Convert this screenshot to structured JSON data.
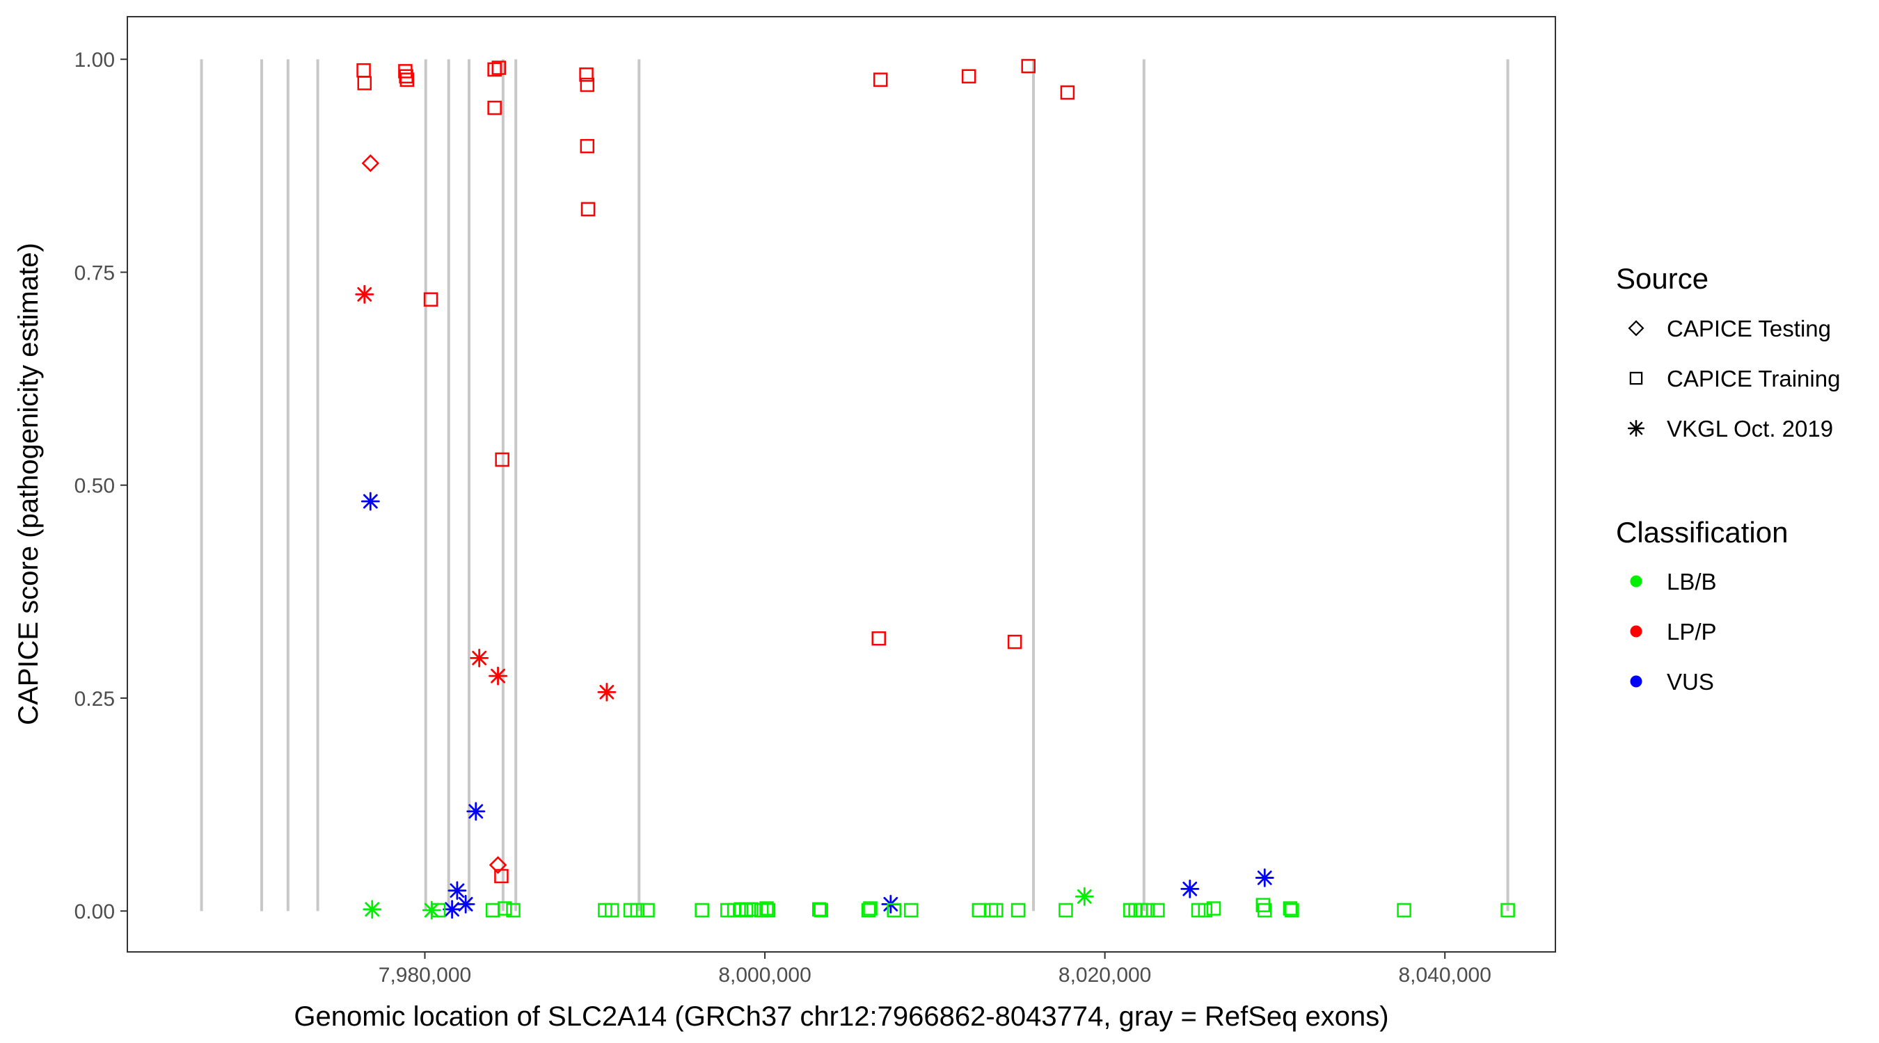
{
  "chart_data": {
    "type": "scatter",
    "xlabel": "Genomic location of SLC2A14 (GRCh37 chr12:7966862-8043774, gray = RefSeq exons)",
    "ylabel": "CAPICE score (pathogenicity estimate)",
    "xlim": [
      7962500,
      8046500
    ],
    "ylim": [
      -0.048,
      1.05
    ],
    "x_ticks": [
      {
        "value": 7980000,
        "label": "7,980,000"
      },
      {
        "value": 8000000,
        "label": "8,000,000"
      },
      {
        "value": 8020000,
        "label": "8,020,000"
      },
      {
        "value": 8040000,
        "label": "8,040,000"
      }
    ],
    "y_ticks": [
      {
        "value": 0,
        "label": "0.00"
      },
      {
        "value": 0.25,
        "label": "0.25"
      },
      {
        "value": 0.5,
        "label": "0.50"
      },
      {
        "value": 0.75,
        "label": "0.75"
      },
      {
        "value": 1,
        "label": "1.00"
      }
    ],
    "grid": false,
    "legend_placement": "right",
    "exons": [
      7966862,
      7970400,
      7971950,
      7973700,
      7980050,
      7981400,
      7982600,
      7984600,
      7985350,
      7992600,
      8015800,
      8022300,
      8043700
    ],
    "legends": [
      {
        "title": "Source",
        "kind": "shape",
        "entries": [
          {
            "label": "CAPICE Testing",
            "shape": "diamond"
          },
          {
            "label": "CAPICE Training",
            "shape": "square"
          },
          {
            "label": "VKGL Oct. 2019",
            "shape": "asterisk"
          }
        ]
      },
      {
        "title": "Classification",
        "kind": "color",
        "entries": [
          {
            "label": "LB/B",
            "color": "#00ee00"
          },
          {
            "label": "LP/P",
            "color": "#ff0000"
          },
          {
            "label": "VUS",
            "color": "#0000ff"
          }
        ]
      }
    ],
    "colors": {
      "LB/B": "#00ee00",
      "LP/P": "#ff0000",
      "VUS": "#0000ff",
      "exon": "#c8c8c8"
    },
    "series": [
      {
        "source": "CAPICE Training",
        "classification": "LP/P",
        "points": [
          [
            7976400,
            0.987
          ],
          [
            7976450,
            0.972
          ],
          [
            7978850,
            0.986
          ],
          [
            7978900,
            0.98
          ],
          [
            7978950,
            0.976
          ],
          [
            7984100,
            0.988
          ],
          [
            7984350,
            0.99
          ],
          [
            7984100,
            0.943
          ],
          [
            7989500,
            0.982
          ],
          [
            7989550,
            0.97
          ],
          [
            7989550,
            0.898
          ],
          [
            7989600,
            0.824
          ],
          [
            7980350,
            0.718
          ],
          [
            7984550,
            0.53
          ],
          [
            7984500,
            0.041
          ],
          [
            8006800,
            0.976
          ],
          [
            8012000,
            0.98
          ],
          [
            8015500,
            0.992
          ],
          [
            8017800,
            0.961
          ],
          [
            8006700,
            0.32
          ],
          [
            8014700,
            0.316
          ]
        ]
      },
      {
        "source": "CAPICE Testing",
        "classification": "LP/P",
        "points": [
          [
            7976800,
            0.878
          ],
          [
            7984300,
            0.054
          ]
        ]
      },
      {
        "source": "VKGL Oct. 2019",
        "classification": "LP/P",
        "points": [
          [
            7976450,
            0.724
          ],
          [
            7983200,
            0.297
          ],
          [
            7984300,
            0.276
          ],
          [
            7990700,
            0.257
          ]
        ]
      },
      {
        "source": "VKGL Oct. 2019",
        "classification": "VUS",
        "points": [
          [
            7976800,
            0.481
          ],
          [
            7983000,
            0.117
          ],
          [
            7981900,
            0.024
          ],
          [
            7982400,
            0.008
          ],
          [
            7981600,
            0.002
          ],
          [
            8007400,
            0.008
          ],
          [
            8025000,
            0.026
          ],
          [
            8029400,
            0.039
          ]
        ]
      },
      {
        "source": "VKGL Oct. 2019",
        "classification": "LB/B",
        "points": [
          [
            7976900,
            0.002
          ],
          [
            7980400,
            0.001
          ],
          [
            8018800,
            0.017
          ]
        ]
      },
      {
        "source": "CAPICE Training",
        "classification": "LB/B",
        "points": [
          [
            7980800,
            0.001
          ],
          [
            7984000,
            0.001
          ],
          [
            7984700,
            0.003
          ],
          [
            7985200,
            0.001
          ],
          [
            7990600,
            0.001
          ],
          [
            7991000,
            0.001
          ],
          [
            7992100,
            0.001
          ],
          [
            7992500,
            0.001
          ],
          [
            7993100,
            0.001
          ],
          [
            7996300,
            0.001
          ],
          [
            7997800,
            0.001
          ],
          [
            7998200,
            0.001
          ],
          [
            7998600,
            0.002
          ],
          [
            7998900,
            0.001
          ],
          [
            7999200,
            0.002
          ],
          [
            7999800,
            0.001
          ],
          [
            8000100,
            0.003
          ],
          [
            8000200,
            0.001
          ],
          [
            8003200,
            0.002
          ],
          [
            8003300,
            0.001
          ],
          [
            8006100,
            0.001
          ],
          [
            8006200,
            0.003
          ],
          [
            8007600,
            0.001
          ],
          [
            8008600,
            0.001
          ],
          [
            8012600,
            0.001
          ],
          [
            8013300,
            0.001
          ],
          [
            8013600,
            0.001
          ],
          [
            8014900,
            0.001
          ],
          [
            8017700,
            0.001
          ],
          [
            8021500,
            0.001
          ],
          [
            8021800,
            0.001
          ],
          [
            8022100,
            0.001
          ],
          [
            8022500,
            0.001
          ],
          [
            8023100,
            0.001
          ],
          [
            8025500,
            0.001
          ],
          [
            8025900,
            0.001
          ],
          [
            8026400,
            0.003
          ],
          [
            8029300,
            0.007
          ],
          [
            8029400,
            0.001
          ],
          [
            8030900,
            0.003
          ],
          [
            8031000,
            0.001
          ],
          [
            8037600,
            0.001
          ],
          [
            8043700,
            0.001
          ]
        ]
      }
    ]
  }
}
